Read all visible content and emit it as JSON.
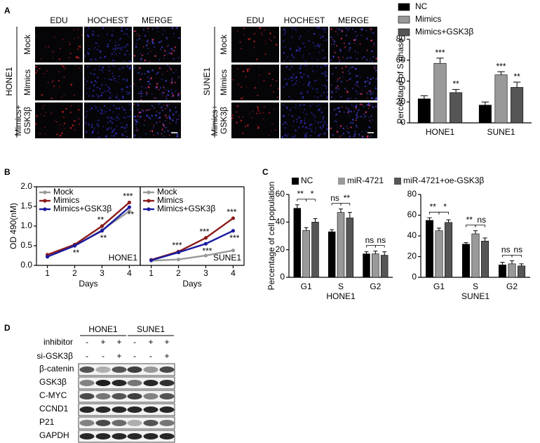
{
  "panels": [
    "A",
    "B",
    "C",
    "D"
  ],
  "imaging": [
    {
      "cell_line": "HONE1",
      "columns": [
        "EDU",
        "HOCHEST",
        "MERGE"
      ],
      "rows": [
        [
          "Mock"
        ],
        [
          "Mimics"
        ],
        [
          "Mimics+",
          "GSK3β"
        ]
      ]
    },
    {
      "cell_line": "SUNE1",
      "columns": [
        "EDU",
        "HOCHEST",
        "MERGE"
      ],
      "rows": [
        [
          "Mock"
        ],
        [
          "Mimics"
        ],
        [
          "Mimics+",
          "GSK3β"
        ]
      ]
    }
  ],
  "chart_data": [
    {
      "type": "bar",
      "ylabel": "Percentage of S phase",
      "categories": [
        "HONE1",
        "SUNE1"
      ],
      "series": [
        {
          "name": "NC",
          "color": "#000000",
          "values": [
            23,
            17
          ],
          "errors": [
            3,
            3
          ]
        },
        {
          "name": "Mimics",
          "color": "#999999",
          "values": [
            57,
            46
          ],
          "errors": [
            5,
            3
          ],
          "annotations": [
            "***",
            "***"
          ]
        },
        {
          "name": "Mimics+GSK3β",
          "color": "#555555",
          "values": [
            29,
            34
          ],
          "errors": [
            3,
            5
          ],
          "annotations": [
            "**",
            "**"
          ]
        }
      ],
      "ylim": [
        0,
        80
      ],
      "yticks": [
        0,
        20,
        40,
        60,
        80
      ],
      "legend": "top"
    },
    {
      "type": "line",
      "ylabel": "OD 490(nM)",
      "xlabel": "Days",
      "label": "HONE1",
      "x": [
        1,
        2,
        3,
        4
      ],
      "xlim": [
        0.6,
        4.4
      ],
      "xticks": [
        1,
        2,
        3,
        4
      ],
      "ylim": [
        0,
        2
      ],
      "yticks": [
        {
          "value": 0,
          "label": "0.0"
        },
        {
          "value": 0.5,
          "label": "0.5"
        },
        {
          "value": 1,
          "label": "1.0"
        },
        {
          "value": 1.5,
          "label": "1.5"
        },
        {
          "value": 2,
          "label": "2.0"
        }
      ],
      "legend": "upper left",
      "series": [
        {
          "name": "Mock",
          "color": "#999999",
          "values": [
            0.22,
            0.5,
            0.9,
            1.38
          ]
        },
        {
          "name": "Mimics",
          "color": "#8b1a1a",
          "values": [
            0.27,
            0.53,
            1.0,
            1.6
          ],
          "annotations": [
            null,
            null,
            "**",
            "***"
          ]
        },
        {
          "name": "Mimics+GSK3β",
          "color": "#1a1aa0",
          "values": [
            0.22,
            0.5,
            0.88,
            1.48
          ],
          "annotations": [
            null,
            "**",
            "**",
            "**"
          ]
        }
      ]
    },
    {
      "type": "line",
      "xlabel": "Days",
      "label": "SUNE1",
      "x": [
        1,
        2,
        3,
        4
      ],
      "xlim": [
        0.6,
        4.4
      ],
      "xticks": [
        1,
        2,
        3,
        4
      ],
      "ylim": [
        0,
        2
      ],
      "legend": "upper left",
      "series": [
        {
          "name": "Mock",
          "color": "#999999",
          "values": [
            0.12,
            0.15,
            0.25,
            0.38
          ]
        },
        {
          "name": "Mimics",
          "color": "#8b1a1a",
          "values": [
            0.14,
            0.35,
            0.7,
            1.2
          ],
          "annotations": [
            null,
            "***",
            "***",
            "***"
          ]
        },
        {
          "name": "Mimics+GSK3β",
          "color": "#1a1aa0",
          "values": [
            0.13,
            0.33,
            0.55,
            0.88
          ],
          "annotations": [
            null,
            null,
            "***",
            "***"
          ]
        }
      ]
    },
    {
      "type": "bar",
      "ylabel": "Percentage of cell population",
      "xlabel": "HONE1",
      "categories": [
        "G1",
        "S",
        "G2"
      ],
      "series": [
        {
          "name": "NC",
          "color": "#000000",
          "values": [
            50,
            33,
            17
          ],
          "errors": [
            2.5,
            1.5,
            1.5
          ]
        },
        {
          "name": "miR-4721",
          "color": "#999999",
          "values": [
            34,
            47,
            17
          ],
          "errors": [
            2,
            2.5,
            2
          ]
        },
        {
          "name": "miR-4721+oe-GSK3β",
          "color": "#555555",
          "values": [
            40,
            43,
            16
          ],
          "errors": [
            2.5,
            4,
            2.5
          ]
        }
      ],
      "comparisons": [
        [
          "**",
          "*"
        ],
        [
          "ns",
          "**"
        ],
        [
          "ns",
          "ns"
        ]
      ],
      "ylim": [
        0,
        60
      ],
      "yticks": [
        0,
        20,
        40,
        60
      ],
      "legend": "top"
    },
    {
      "type": "bar",
      "xlabel": "SUNE1",
      "categories": [
        "G1",
        "S",
        "G2"
      ],
      "series": [
        {
          "color": "#000000",
          "values": [
            55,
            32,
            12
          ],
          "errors": [
            2.5,
            1.5,
            2.5
          ]
        },
        {
          "color": "#999999",
          "values": [
            45,
            42,
            13
          ],
          "errors": [
            2.5,
            3,
            3
          ]
        },
        {
          "color": "#555555",
          "values": [
            53,
            35,
            11
          ],
          "errors": [
            2.5,
            3,
            2
          ]
        }
      ],
      "comparisons": [
        [
          "**",
          "*"
        ],
        [
          "**",
          "ns"
        ],
        [
          "ns",
          "ns"
        ]
      ],
      "ylim": [
        0,
        80
      ],
      "yticks": [
        0,
        20,
        40,
        60,
        80
      ]
    }
  ],
  "western_blot": {
    "groups": [
      "HONE1",
      "SUNE1"
    ],
    "conditions": [
      {
        "name": "inhibitor",
        "signs": [
          "-",
          "+",
          "+",
          "-",
          "+",
          "+"
        ]
      },
      {
        "name": "si-GSK3β",
        "signs": [
          "-",
          "-",
          "+",
          "-",
          "-",
          "+"
        ]
      }
    ],
    "proteins": [
      "β-catenin",
      "GSK3β",
      "C-MYC",
      "CCND1",
      "P21",
      "GAPDH"
    ]
  }
}
